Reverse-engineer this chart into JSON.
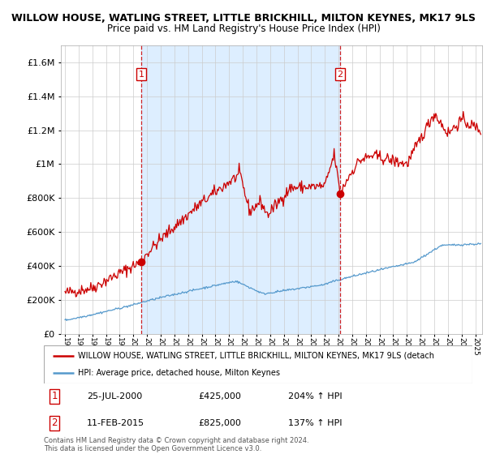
{
  "title": "WILLOW HOUSE, WATLING STREET, LITTLE BRICKHILL, MILTON KEYNES, MK17 9LS",
  "subtitle": "Price paid vs. HM Land Registry's House Price Index (HPI)",
  "sale1_date": "25-JUL-2000",
  "sale1_price": 425000,
  "sale1_hpi_pct": "204%",
  "sale2_date": "11-FEB-2015",
  "sale2_price": 825000,
  "sale2_hpi_pct": "137%",
  "sale1_x": 2000.57,
  "sale2_x": 2015.11,
  "red_line_color": "#cc0000",
  "blue_line_color": "#5599cc",
  "dashed_line_color": "#cc0000",
  "shade_color": "#ddeeff",
  "background_color": "#ffffff",
  "grid_color": "#cccccc",
  "ylim_max": 1700000,
  "xlim_start": 1994.7,
  "xlim_end": 2025.5,
  "footer_text": "Contains HM Land Registry data © Crown copyright and database right 2024.\nThis data is licensed under the Open Government Licence v3.0.",
  "legend_label_red": "WILLOW HOUSE, WATLING STREET, LITTLE BRICKHILL, MILTON KEYNES, MK17 9LS (detach",
  "legend_label_blue": "HPI: Average price, detached house, Milton Keynes"
}
